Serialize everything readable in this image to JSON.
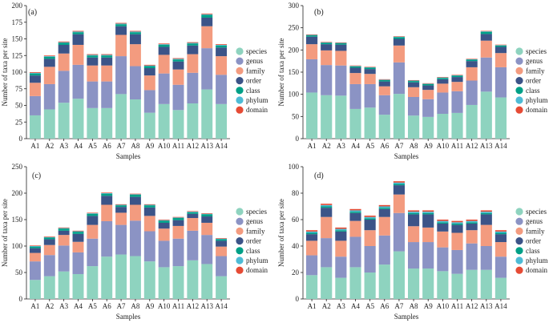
{
  "colors": {
    "species": "#8ed3bf",
    "genus": "#8b93c4",
    "family": "#f39b7f",
    "order": "#3c5488",
    "class": "#00a087",
    "phylum": "#4dbbd5",
    "domain": "#e64b35"
  },
  "chart_data": [
    {
      "type": "bar",
      "stacked": true,
      "panel_label": "(a)",
      "xlabel": "Samples",
      "ylabel": "Number of taxa per site",
      "ylim": [
        0,
        200
      ],
      "yticks": [
        0,
        25,
        50,
        75,
        100,
        125,
        150,
        175,
        200
      ],
      "categories": [
        "A1",
        "A2",
        "A3",
        "A4",
        "A5",
        "A6",
        "A7",
        "A8",
        "A9",
        "A10",
        "A11",
        "A12",
        "A13",
        "A14"
      ],
      "series": [
        {
          "name": "species",
          "values": [
            35,
            44,
            54,
            60,
            46,
            46,
            67,
            59,
            39,
            52,
            43,
            53,
            74,
            52
          ]
        },
        {
          "name": "genus",
          "values": [
            29,
            38,
            48,
            51,
            40,
            40,
            57,
            50,
            34,
            46,
            38,
            46,
            62,
            44
          ]
        },
        {
          "name": "family",
          "values": [
            20,
            26,
            26,
            30,
            24,
            24,
            32,
            33,
            22,
            28,
            23,
            28,
            33,
            28
          ]
        },
        {
          "name": "order",
          "values": [
            11,
            12,
            13,
            16,
            12,
            12,
            13,
            15,
            11,
            12,
            12,
            13,
            13,
            13
          ]
        },
        {
          "name": "class",
          "values": [
            3,
            3,
            3,
            3,
            3,
            3,
            3,
            3,
            3,
            3,
            3,
            3,
            4,
            3
          ]
        },
        {
          "name": "phylum",
          "values": [
            1,
            1,
            1,
            1,
            1,
            1,
            1,
            1,
            1,
            1,
            1,
            1,
            1,
            1
          ]
        },
        {
          "name": "domain",
          "values": [
            1,
            1,
            1,
            1,
            1,
            1,
            1,
            1,
            1,
            1,
            1,
            1,
            1,
            1
          ]
        }
      ]
    },
    {
      "type": "bar",
      "stacked": true,
      "panel_label": "(b)",
      "xlabel": "Samples",
      "ylabel": "Number of taxa per site",
      "ylim": [
        0,
        300
      ],
      "yticks": [
        0,
        50,
        100,
        150,
        200,
        250,
        300
      ],
      "categories": [
        "A1",
        "A2",
        "A3",
        "A4",
        "A5",
        "A6",
        "A7",
        "A8",
        "A9",
        "A10",
        "A11",
        "A12",
        "A13",
        "A14"
      ],
      "series": [
        {
          "name": "species",
          "values": [
            104,
            98,
            97,
            67,
            70,
            54,
            101,
            52,
            49,
            56,
            58,
            76,
            106,
            93
          ]
        },
        {
          "name": "genus",
          "values": [
            75,
            68,
            68,
            56,
            53,
            44,
            71,
            42,
            40,
            48,
            49,
            55,
            77,
            68
          ]
        },
        {
          "name": "family",
          "values": [
            34,
            33,
            33,
            25,
            23,
            20,
            38,
            22,
            21,
            20,
            21,
            30,
            38,
            32
          ]
        },
        {
          "name": "order",
          "values": [
            17,
            14,
            14,
            12,
            11,
            11,
            15,
            11,
            10,
            10,
            11,
            14,
            15,
            14
          ]
        },
        {
          "name": "class",
          "values": [
            3,
            3,
            3,
            3,
            3,
            3,
            4,
            3,
            3,
            3,
            3,
            3,
            5,
            3
          ]
        },
        {
          "name": "phylum",
          "values": [
            1,
            1,
            1,
            1,
            1,
            1,
            1,
            1,
            1,
            1,
            1,
            1,
            1,
            1
          ]
        },
        {
          "name": "domain",
          "values": [
            1,
            1,
            1,
            1,
            1,
            1,
            1,
            1,
            1,
            1,
            1,
            1,
            1,
            1
          ]
        }
      ]
    },
    {
      "type": "bar",
      "stacked": true,
      "panel_label": "(c)",
      "xlabel": "Samples",
      "ylabel": "Number of taxa per site",
      "ylim": [
        0,
        250
      ],
      "yticks": [
        0,
        50,
        100,
        150,
        200,
        250
      ],
      "categories": [
        "A1",
        "A2",
        "A3",
        "A4",
        "A5",
        "A6",
        "A7",
        "A8",
        "A9",
        "A10",
        "A11",
        "A12",
        "A13",
        "A14"
      ],
      "series": [
        {
          "name": "species",
          "values": [
            36,
            43,
            52,
            47,
            62,
            80,
            84,
            81,
            71,
            60,
            62,
            73,
            66,
            43
          ]
        },
        {
          "name": "genus",
          "values": [
            35,
            40,
            49,
            41,
            52,
            67,
            56,
            67,
            57,
            50,
            52,
            56,
            55,
            38
          ]
        },
        {
          "name": "family",
          "values": [
            16,
            19,
            20,
            20,
            26,
            31,
            23,
            30,
            29,
            23,
            24,
            24,
            23,
            18
          ]
        },
        {
          "name": "order",
          "values": [
            9,
            11,
            8,
            15,
            17,
            17,
            11,
            15,
            16,
            11,
            11,
            8,
            12,
            11
          ]
        },
        {
          "name": "class",
          "values": [
            3,
            3,
            4,
            4,
            4,
            4,
            3,
            4,
            4,
            4,
            4,
            3,
            4,
            3
          ]
        },
        {
          "name": "phylum",
          "values": [
            1,
            1,
            1,
            1,
            1,
            1,
            1,
            1,
            1,
            1,
            1,
            1,
            1,
            1
          ]
        },
        {
          "name": "domain",
          "values": [
            1,
            1,
            1,
            1,
            1,
            1,
            1,
            1,
            1,
            1,
            1,
            1,
            1,
            1
          ]
        }
      ]
    },
    {
      "type": "bar",
      "stacked": true,
      "panel_label": "(d)",
      "xlabel": "Samples",
      "ylabel": "Number of taxa per site",
      "ylim": [
        0,
        100
      ],
      "yticks": [
        0,
        20,
        40,
        60,
        80,
        100
      ],
      "categories": [
        "A1",
        "A2",
        "A3",
        "A4",
        "A5",
        "A6",
        "A7",
        "A8",
        "A9",
        "A10",
        "A11",
        "A12",
        "A13",
        "A14"
      ],
      "series": [
        {
          "name": "species",
          "values": [
            18,
            24,
            16,
            24,
            20,
            26,
            36,
            23,
            23,
            21,
            19,
            22,
            22,
            16
          ]
        },
        {
          "name": "genus",
          "values": [
            15,
            22,
            16,
            23,
            20,
            22,
            29,
            20,
            20,
            18,
            18,
            20,
            18,
            16
          ]
        },
        {
          "name": "family",
          "values": [
            11,
            16,
            12,
            12,
            12,
            14,
            14,
            12,
            11,
            12,
            13,
            10,
            16,
            11
          ]
        },
        {
          "name": "order",
          "values": [
            5,
            7,
            7,
            6,
            8,
            6,
            7,
            9,
            10,
            6,
            6,
            5,
            8,
            6
          ]
        },
        {
          "name": "class",
          "values": [
            1,
            1,
            1,
            1,
            1,
            1,
            1,
            1,
            1,
            1,
            1,
            1,
            1,
            1
          ]
        },
        {
          "name": "phylum",
          "values": [
            1,
            1,
            1,
            1,
            1,
            1,
            1,
            1,
            1,
            1,
            1,
            1,
            1,
            1
          ]
        },
        {
          "name": "domain",
          "values": [
            1,
            1,
            1,
            1,
            1,
            1,
            1,
            1,
            1,
            1,
            1,
            1,
            1,
            1
          ]
        }
      ]
    }
  ]
}
